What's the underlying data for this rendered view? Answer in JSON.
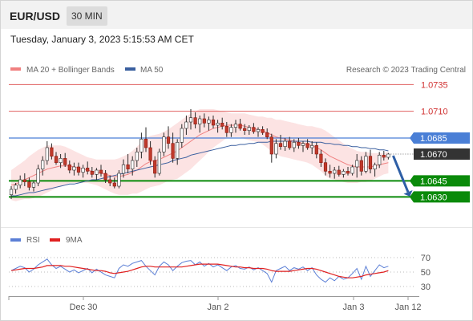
{
  "header": {
    "symbol": "EUR/USD",
    "timeframe": "30 MIN"
  },
  "timestamp": "Tuesday, January 3, 2023 5:15:53 AM CET",
  "legend": {
    "ma20": {
      "label": "MA 20 + Bollinger Bands",
      "color": "#f08080"
    },
    "ma50": {
      "label": "MA 50",
      "color": "#3a5f9f"
    },
    "credit": "Research © 2023 Trading Central"
  },
  "rsi_legend": {
    "rsi": {
      "label": "RSI",
      "color": "#5b7fd6"
    },
    "ma9": {
      "label": "9MA",
      "color": "#e02020"
    }
  },
  "chart_data": {
    "type": "candlestick",
    "ylim": [
      1.0622,
      1.0742
    ],
    "x_ticks": [
      "Dec 30",
      "Jan 2",
      "Jan 3",
      "Jan 12"
    ],
    "levels": [
      {
        "value": 1.0735,
        "label": "1.0735",
        "kind": "resistance"
      },
      {
        "value": 1.071,
        "label": "1.0710",
        "kind": "resistance"
      },
      {
        "value": 1.0685,
        "label": "1.0685",
        "kind": "pivot"
      },
      {
        "value": 1.067,
        "label": "1.0670",
        "kind": "last"
      },
      {
        "value": 1.0645,
        "label": "1.0645",
        "kind": "support"
      },
      {
        "value": 1.063,
        "label": "1.0630",
        "kind": "support"
      }
    ],
    "ohlc": [
      [
        1.0632,
        1.064,
        1.0628,
        1.0637
      ],
      [
        1.0637,
        1.0643,
        1.0633,
        1.0641
      ],
      [
        1.0641,
        1.065,
        1.0638,
        1.0646
      ],
      [
        1.0646,
        1.0652,
        1.064,
        1.0644
      ],
      [
        1.0644,
        1.0648,
        1.0636,
        1.0639
      ],
      [
        1.0639,
        1.0645,
        1.0635,
        1.0643
      ],
      [
        1.0643,
        1.066,
        1.064,
        1.0656
      ],
      [
        1.0656,
        1.0668,
        1.065,
        1.0664
      ],
      [
        1.0664,
        1.0682,
        1.066,
        1.0676
      ],
      [
        1.0676,
        1.068,
        1.0665,
        1.0668
      ],
      [
        1.0668,
        1.0672,
        1.066,
        1.0662
      ],
      [
        1.0662,
        1.067,
        1.0657,
        1.0666
      ],
      [
        1.0666,
        1.0671,
        1.0658,
        1.066
      ],
      [
        1.066,
        1.0664,
        1.0652,
        1.0655
      ],
      [
        1.0655,
        1.0662,
        1.065,
        1.0658
      ],
      [
        1.0658,
        1.0662,
        1.065,
        1.0653
      ],
      [
        1.0653,
        1.066,
        1.0648,
        1.0657
      ],
      [
        1.0657,
        1.0663,
        1.0651,
        1.0654
      ],
      [
        1.0654,
        1.0658,
        1.0648,
        1.0651
      ],
      [
        1.0651,
        1.0657,
        1.0646,
        1.0655
      ],
      [
        1.0655,
        1.066,
        1.0649,
        1.0652
      ],
      [
        1.0652,
        1.0655,
        1.0643,
        1.0646
      ],
      [
        1.0646,
        1.065,
        1.064,
        1.0643
      ],
      [
        1.0643,
        1.0648,
        1.0638,
        1.064
      ],
      [
        1.064,
        1.0655,
        1.0638,
        1.0652
      ],
      [
        1.0652,
        1.0665,
        1.0648,
        1.066
      ],
      [
        1.066,
        1.067,
        1.0652,
        1.0656
      ],
      [
        1.0656,
        1.0668,
        1.065,
        1.0664
      ],
      [
        1.0664,
        1.0676,
        1.0658,
        1.0672
      ],
      [
        1.0672,
        1.069,
        1.0666,
        1.0684
      ],
      [
        1.0684,
        1.0695,
        1.0672,
        1.0676
      ],
      [
        1.0676,
        1.0682,
        1.066,
        1.0664
      ],
      [
        1.0664,
        1.0668,
        1.0648,
        1.0652
      ],
      [
        1.0652,
        1.0675,
        1.065,
        1.0672
      ],
      [
        1.0672,
        1.069,
        1.0668,
        1.0686
      ],
      [
        1.0686,
        1.0696,
        1.0675,
        1.068
      ],
      [
        1.068,
        1.069,
        1.0662,
        1.0666
      ],
      [
        1.0666,
        1.0684,
        1.066,
        1.0681
      ],
      [
        1.0681,
        1.0698,
        1.0676,
        1.0694
      ],
      [
        1.0694,
        1.0706,
        1.0688,
        1.07
      ],
      [
        1.07,
        1.0712,
        1.0693,
        1.0704
      ],
      [
        1.0704,
        1.0709,
        1.0694,
        1.0698
      ],
      [
        1.0698,
        1.0706,
        1.069,
        1.0703
      ],
      [
        1.0703,
        1.0708,
        1.0695,
        1.0699
      ],
      [
        1.0699,
        1.0705,
        1.0692,
        1.0702
      ],
      [
        1.0702,
        1.0706,
        1.0694,
        1.0697
      ],
      [
        1.0697,
        1.0702,
        1.069,
        1.0699
      ],
      [
        1.0699,
        1.0704,
        1.0693,
        1.0696
      ],
      [
        1.0696,
        1.07,
        1.0686,
        1.069
      ],
      [
        1.069,
        1.0698,
        1.0686,
        1.0695
      ],
      [
        1.0695,
        1.0702,
        1.069,
        1.0698
      ],
      [
        1.0698,
        1.0703,
        1.0692,
        1.0694
      ],
      [
        1.0694,
        1.0698,
        1.0688,
        1.0692
      ],
      [
        1.0692,
        1.0697,
        1.0688,
        1.0695
      ],
      [
        1.0695,
        1.0699,
        1.0689,
        1.0691
      ],
      [
        1.0691,
        1.0695,
        1.0686,
        1.0693
      ],
      [
        1.0693,
        1.0696,
        1.0688,
        1.069
      ],
      [
        1.069,
        1.0694,
        1.0684,
        1.0686
      ],
      [
        1.0686,
        1.0689,
        1.0662,
        1.067
      ],
      [
        1.067,
        1.0684,
        1.0666,
        1.068
      ],
      [
        1.068,
        1.0688,
        1.0674,
        1.0677
      ],
      [
        1.0677,
        1.0685,
        1.0673,
        1.0682
      ],
      [
        1.0682,
        1.0686,
        1.0674,
        1.0676
      ],
      [
        1.0676,
        1.0684,
        1.0672,
        1.0681
      ],
      [
        1.0681,
        1.0685,
        1.0675,
        1.0678
      ],
      [
        1.0678,
        1.0682,
        1.0672,
        1.068
      ],
      [
        1.068,
        1.0684,
        1.0674,
        1.0676
      ],
      [
        1.0676,
        1.0682,
        1.067,
        1.0678
      ],
      [
        1.0678,
        1.0681,
        1.0666,
        1.067
      ],
      [
        1.067,
        1.0674,
        1.0658,
        1.0662
      ],
      [
        1.0662,
        1.0666,
        1.065,
        1.0654
      ],
      [
        1.0654,
        1.066,
        1.0648,
        1.0652
      ],
      [
        1.0652,
        1.0658,
        1.0647,
        1.0655
      ],
      [
        1.0655,
        1.0659,
        1.0649,
        1.0651
      ],
      [
        1.0651,
        1.0656,
        1.0648,
        1.0654
      ],
      [
        1.0654,
        1.0658,
        1.065,
        1.0652
      ],
      [
        1.0652,
        1.066,
        1.065,
        1.0658
      ],
      [
        1.0658,
        1.067,
        1.0648,
        1.0664
      ],
      [
        1.0664,
        1.0668,
        1.065,
        1.0654
      ],
      [
        1.0654,
        1.0672,
        1.0652,
        1.0668
      ],
      [
        1.0668,
        1.0674,
        1.0652,
        1.0656
      ],
      [
        1.0656,
        1.0662,
        1.0649,
        1.066
      ],
      [
        1.066,
        1.0672,
        1.0657,
        1.0669
      ],
      [
        1.0669,
        1.0673,
        1.0664,
        1.0667
      ],
      [
        1.0667,
        1.0671,
        1.0665,
        1.067
      ]
    ],
    "ma20": [
      1.0641,
      1.0642,
      1.0644,
      1.0646,
      1.0648,
      1.065,
      1.0652,
      1.0654,
      1.0656,
      1.0657,
      1.0658,
      1.0659,
      1.0659,
      1.0659,
      1.0658,
      1.0657,
      1.0656,
      1.0655,
      1.0654,
      1.0653,
      1.0652,
      1.0651,
      1.065,
      1.0649,
      1.0649,
      1.065,
      1.0651,
      1.0653,
      1.0655,
      1.0658,
      1.0661,
      1.0663,
      1.0664,
      1.0665,
      1.0667,
      1.0669,
      1.0671,
      1.0673,
      1.0676,
      1.0679,
      1.0682,
      1.0685,
      1.0688,
      1.069,
      1.0692,
      1.0694,
      1.0695,
      1.0696,
      1.0697,
      1.0697,
      1.0697,
      1.0697,
      1.0696,
      1.0695,
      1.0694,
      1.0693,
      1.0692,
      1.069,
      1.0688,
      1.0686,
      1.0685,
      1.0684,
      1.0683,
      1.0682,
      1.0681,
      1.068,
      1.0679,
      1.0678,
      1.0676,
      1.0674,
      1.0671,
      1.0668,
      1.0666,
      1.0664,
      1.0662,
      1.066,
      1.0659,
      1.0658,
      1.0658,
      1.0658,
      1.0658,
      1.0659,
      1.066,
      1.0661,
      1.0662
    ],
    "bb_width": [
      0.0014,
      0.0016,
      0.0017,
      0.0018,
      0.002,
      0.0021,
      0.0022,
      0.0022,
      0.0022,
      0.0021,
      0.002,
      0.0019,
      0.0018,
      0.0016,
      0.0015,
      0.0014,
      0.0013,
      0.0012,
      0.0012,
      0.0012,
      0.0013,
      0.0014,
      0.0015,
      0.0016,
      0.0017,
      0.0018,
      0.0019,
      0.002,
      0.0022,
      0.0023,
      0.0024,
      0.0024,
      0.0024,
      0.0024,
      0.0024,
      0.0024,
      0.0025,
      0.0026,
      0.0026,
      0.0026,
      0.0026,
      0.0025,
      0.0024,
      0.0022,
      0.002,
      0.0018,
      0.0016,
      0.0014,
      0.0012,
      0.0011,
      0.0011,
      0.0011,
      0.0012,
      0.0012,
      0.0012,
      0.0012,
      0.0013,
      0.0014,
      0.0016,
      0.0016,
      0.0017,
      0.0017,
      0.0017,
      0.0017,
      0.0017,
      0.0017,
      0.0017,
      0.0018,
      0.0019,
      0.002,
      0.0021,
      0.0021,
      0.002,
      0.0019,
      0.0018,
      0.0017,
      0.0016,
      0.0015,
      0.0014,
      0.0014,
      0.0013,
      0.0012,
      0.0011,
      0.001,
      0.001
    ],
    "ma50": [
      1.0631,
      1.0631,
      1.0632,
      1.0633,
      1.0634,
      1.0634,
      1.0635,
      1.0636,
      1.0637,
      1.0638,
      1.0639,
      1.064,
      1.0641,
      1.0642,
      1.0642,
      1.0643,
      1.0644,
      1.0645,
      1.0646,
      1.0646,
      1.0647,
      1.0648,
      1.0649,
      1.065,
      1.0651,
      1.0652,
      1.0653,
      1.0654,
      1.0655,
      1.0656,
      1.0657,
      1.0658,
      1.0659,
      1.066,
      1.0661,
      1.0662,
      1.0664,
      1.0665,
      1.0666,
      1.0667,
      1.0669,
      1.067,
      1.0671,
      1.0672,
      1.0673,
      1.0674,
      1.0675,
      1.0676,
      1.0677,
      1.0678,
      1.0678,
      1.0679,
      1.0679,
      1.068,
      1.068,
      1.0681,
      1.0681,
      1.0681,
      1.0682,
      1.0682,
      1.0682,
      1.0682,
      1.0682,
      1.0682,
      1.0682,
      1.0682,
      1.0682,
      1.0681,
      1.0681,
      1.0681,
      1.068,
      1.068,
      1.0679,
      1.0679,
      1.0678,
      1.0678,
      1.0677,
      1.0677,
      1.0676,
      1.0676,
      1.0675,
      1.0675,
      1.0674,
      1.0674,
      1.0673
    ],
    "forecast": {
      "from": 1.067,
      "to": 1.063
    },
    "rsi": {
      "ylim": [
        20,
        80
      ],
      "ticks": [
        70,
        50,
        30
      ],
      "values": [
        52,
        55,
        58,
        56,
        50,
        54,
        60,
        64,
        68,
        60,
        55,
        58,
        54,
        50,
        53,
        49,
        52,
        55,
        49,
        54,
        50,
        46,
        44,
        42,
        55,
        60,
        58,
        62,
        64,
        66,
        58,
        52,
        46,
        58,
        64,
        60,
        52,
        58,
        63,
        65,
        66,
        60,
        64,
        58,
        62,
        57,
        60,
        56,
        52,
        57,
        59,
        55,
        54,
        57,
        53,
        56,
        52,
        48,
        36,
        52,
        55,
        58,
        52,
        56,
        54,
        57,
        52,
        56,
        46,
        40,
        36,
        42,
        38,
        44,
        40,
        42,
        48,
        55,
        40,
        58,
        44,
        52,
        60,
        56,
        58
      ],
      "ma9": [
        52,
        53,
        54,
        55,
        55,
        55,
        56,
        57,
        59,
        59,
        59,
        59,
        58,
        58,
        57,
        56,
        55,
        54,
        53,
        52,
        52,
        51,
        49,
        48,
        49,
        50,
        51,
        53,
        55,
        57,
        58,
        58,
        57,
        57,
        57,
        57,
        57,
        57,
        57,
        58,
        59,
        60,
        61,
        61,
        61,
        61,
        61,
        60,
        59,
        58,
        57,
        57,
        56,
        56,
        55,
        55,
        55,
        54,
        52,
        51,
        51,
        51,
        51,
        52,
        53,
        54,
        55,
        55,
        54,
        52,
        50,
        48,
        46,
        44,
        43,
        42,
        42,
        43,
        44,
        46,
        47,
        48,
        49,
        50,
        52
      ]
    }
  }
}
